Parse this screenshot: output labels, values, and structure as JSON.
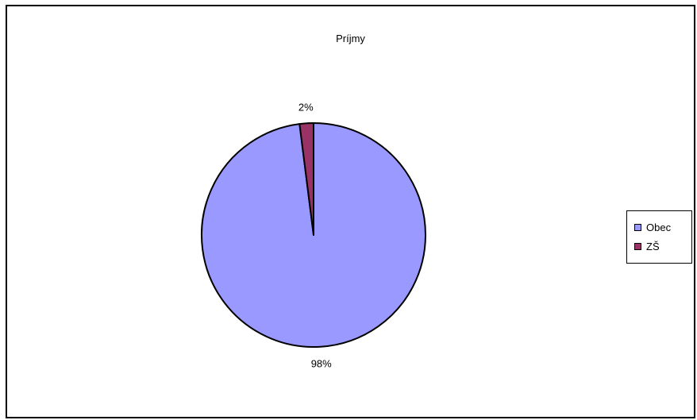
{
  "chart_data": {
    "type": "pie",
    "title": "Príjmy",
    "categories": [
      "Obec",
      "ZŠ"
    ],
    "values": [
      98,
      2
    ],
    "data_labels": [
      "98%",
      "2%"
    ],
    "colors": [
      "#9999ff",
      "#993366"
    ],
    "legend_position": "right"
  }
}
